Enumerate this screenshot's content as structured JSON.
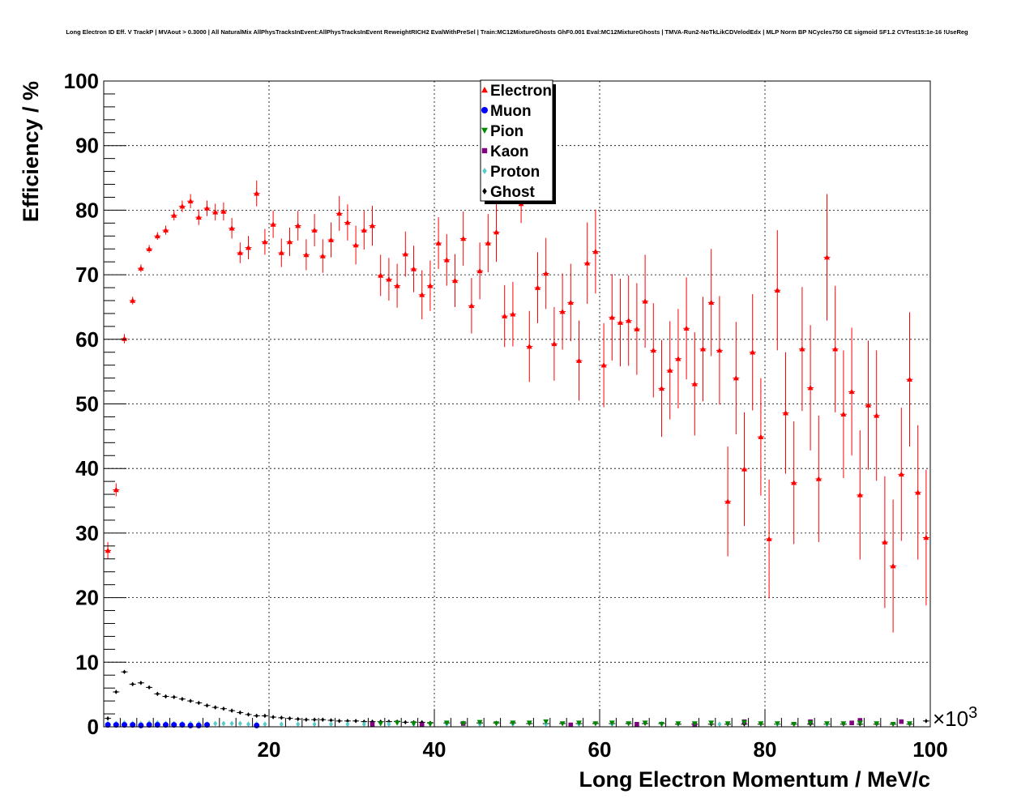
{
  "chart_data": {
    "type": "scatter",
    "title": "Long Electron ID Eff. V TrackP | MVAout > 0.3000 | All NaturalMix AllPhysTracksInEvent:AllPhysTracksInEvent ReweightRICH2 EvalWithPreSel | Train:MC12MixtureGhosts GhF0.001 Eval:MC12MixtureGhosts | TMVA-Run2-NoTkLikCDVelodEdx | MLP Norm BP NCycles750 CE sigmoid SF1.2 CVTest15:1e-16 !UseReg",
    "xlabel": "Long Electron Momentum / MeV/c",
    "ylabel": "Efficiency / %",
    "x_multiplier": "×10",
    "x_multiplier_exp": "3",
    "xlim": [
      0,
      100
    ],
    "ylim": [
      0,
      100
    ],
    "x_ticks": [
      20,
      40,
      60,
      80,
      100
    ],
    "y_ticks": [
      0,
      10,
      20,
      30,
      40,
      50,
      60,
      70,
      80,
      90,
      100
    ],
    "grid": true,
    "legend_position": "top-center",
    "series": [
      {
        "name": "Electron",
        "marker": "triangle-up",
        "color": "#ff0000",
        "x": [
          1,
          2,
          3,
          4,
          5,
          6,
          7,
          8,
          9,
          10,
          11,
          12,
          13,
          14,
          15,
          16,
          17,
          18,
          19,
          20,
          21,
          22,
          23,
          24,
          25,
          26,
          27,
          28,
          29,
          30,
          31,
          32,
          33,
          34,
          35,
          36,
          37,
          38,
          39,
          40,
          41,
          42,
          43,
          44,
          45,
          46,
          47,
          48,
          49,
          50,
          51,
          52,
          53,
          54,
          55,
          56,
          57,
          58,
          59,
          60,
          61,
          62,
          63,
          64,
          65,
          66,
          67,
          68,
          69,
          70,
          71,
          72,
          73,
          74,
          75,
          76,
          77,
          78,
          79,
          80,
          81,
          82,
          83,
          84,
          85,
          86,
          87,
          88,
          89,
          90,
          91,
          92,
          93,
          94,
          95,
          96,
          97,
          98,
          99,
          100
        ],
        "values": [
          27.3,
          36.7,
          60.1,
          66.0,
          71.0,
          74.0,
          76.0,
          76.9,
          79.2,
          80.6,
          81.4,
          78.9,
          80.3,
          79.7,
          79.8,
          77.2,
          73.4,
          74.2,
          82.6,
          75.1,
          77.8,
          73.4,
          75.1,
          77.6,
          73.1,
          76.9,
          72.9,
          75.4,
          79.5,
          78.1,
          74.6,
          76.9,
          77.6,
          69.9,
          69.3,
          68.3,
          73.2,
          70.9,
          66.9,
          68.3,
          74.9,
          72.3,
          69.1,
          75.6,
          65.2,
          70.6,
          74.9,
          76.6,
          63.6,
          63.9,
          81.0,
          58.9,
          68.0,
          70.2,
          59.3,
          64.3,
          65.7,
          56.7,
          71.8,
          73.6,
          56.0,
          63.4,
          62.6,
          62.9,
          61.6,
          65.9,
          58.3,
          52.4,
          55.2,
          57.0,
          61.7,
          53.1,
          58.5,
          65.7,
          58.3,
          34.9,
          54.0,
          39.9,
          58.0,
          44.9,
          29.1,
          67.6,
          48.6,
          37.8,
          58.5,
          52.5,
          38.4,
          72.7,
          58.5,
          48.4,
          51.9,
          35.9,
          49.8,
          48.2,
          28.6,
          24.9,
          39.1,
          53.8,
          36.3,
          29.3
        ],
        "errors": [
          1.3,
          1.0,
          0.7,
          0.6,
          0.6,
          0.6,
          0.6,
          0.7,
          0.8,
          0.9,
          1.1,
          1.2,
          1.2,
          1.3,
          1.4,
          1.6,
          1.6,
          1.8,
          2.0,
          2.0,
          2.1,
          2.2,
          2.2,
          2.3,
          2.4,
          2.5,
          2.6,
          2.7,
          2.7,
          2.8,
          3.0,
          3.0,
          3.1,
          3.2,
          3.3,
          3.4,
          3.5,
          3.6,
          3.8,
          3.9,
          4.0,
          4.0,
          4.1,
          4.2,
          4.3,
          4.4,
          4.5,
          4.6,
          4.8,
          5.0,
          3.0,
          5.5,
          5.5,
          5.5,
          5.7,
          5.9,
          6.0,
          6.2,
          6.3,
          6.5,
          6.5,
          6.7,
          6.8,
          7.0,
          7.1,
          7.2,
          7.3,
          7.5,
          7.6,
          7.7,
          7.9,
          8.0,
          8.1,
          8.3,
          8.4,
          8.5,
          8.7,
          8.8,
          9.0,
          9.1,
          9.2,
          9.3,
          9.4,
          9.5,
          9.6,
          9.7,
          9.8,
          9.8,
          9.8,
          9.9,
          9.9,
          10.0,
          10.0,
          10.1,
          10.2,
          10.3,
          10.3,
          10.4,
          10.4,
          10.5
        ]
      },
      {
        "name": "Muon",
        "marker": "circle",
        "color": "#0000ff",
        "x": [
          1,
          2,
          3,
          4,
          5,
          6,
          7,
          8,
          9,
          10,
          11,
          12,
          13,
          19
        ],
        "values": [
          0.3,
          0.3,
          0.3,
          0.3,
          0.2,
          0.3,
          0.3,
          0.3,
          0.3,
          0.3,
          0.2,
          0.2,
          0.3,
          0.2
        ]
      },
      {
        "name": "Pion",
        "marker": "triangle-down",
        "color": "#008800",
        "x": [
          34,
          36,
          38,
          40,
          42,
          44,
          46,
          48,
          50,
          52,
          54,
          56,
          58,
          60,
          62,
          64,
          66,
          68,
          70,
          72,
          74,
          76,
          78,
          80,
          82,
          84,
          86,
          88,
          90,
          92,
          94,
          96,
          98
        ],
        "values": [
          0.5,
          0.6,
          0.5,
          0.4,
          0.6,
          0.5,
          0.7,
          0.5,
          0.6,
          0.6,
          0.8,
          0.5,
          0.6,
          0.5,
          0.6,
          0.5,
          0.6,
          0.4,
          0.5,
          0.5,
          0.6,
          0.5,
          0.7,
          0.5,
          0.5,
          0.4,
          0.6,
          0.5,
          0.5,
          0.6,
          0.5,
          0.4,
          0.5
        ]
      },
      {
        "name": "Kaon",
        "marker": "square",
        "color": "#800080",
        "x": [
          33,
          39,
          44,
          57,
          65,
          72,
          78,
          86,
          91,
          92,
          97
        ],
        "values": [
          0.4,
          0.3,
          0.5,
          0.3,
          0.4,
          0.4,
          0.8,
          0.8,
          0.6,
          1.0,
          0.8
        ]
      },
      {
        "name": "Proton",
        "marker": "diamond",
        "color": "#55cccc",
        "x": [
          1,
          2,
          3,
          4,
          5,
          6,
          7,
          8,
          9,
          10,
          11,
          12,
          13,
          14,
          15,
          16,
          17,
          18,
          19,
          20,
          22,
          24,
          26,
          28,
          30,
          32,
          35,
          38,
          42,
          46,
          50,
          54,
          58,
          62,
          68,
          75,
          82,
          88
        ],
        "values": [
          0.5,
          0.5,
          0.6,
          0.5,
          0.5,
          0.6,
          0.6,
          0.5,
          0.5,
          0.5,
          0.5,
          0.5,
          0.4,
          0.5,
          0.5,
          0.5,
          0.5,
          0.4,
          0.4,
          0.4,
          0.4,
          0.4,
          0.4,
          0.4,
          0.4,
          0.4,
          0.4,
          0.4,
          0.4,
          0.4,
          0.4,
          0.4,
          0.4,
          0.4,
          0.5,
          0.4,
          0.4,
          0.4
        ]
      },
      {
        "name": "Ghost",
        "marker": "diamond",
        "color": "#000000",
        "x": [
          1,
          2,
          3,
          4,
          5,
          6,
          7,
          8,
          9,
          10,
          11,
          12,
          13,
          14,
          15,
          16,
          17,
          18,
          19,
          20,
          21,
          22,
          23,
          24,
          25,
          26,
          27,
          28,
          29,
          30,
          31,
          32,
          33,
          34,
          35,
          36,
          37,
          38,
          39,
          40,
          42,
          44,
          46,
          48,
          50,
          52,
          54,
          56,
          58,
          60,
          62,
          64,
          66,
          68,
          70,
          72,
          74,
          76,
          78,
          80,
          82,
          84,
          86,
          88,
          90,
          92,
          94,
          96,
          98,
          100
        ],
        "values": [
          1.3,
          5.4,
          8.5,
          6.6,
          6.8,
          6.1,
          5.1,
          4.7,
          4.6,
          4.3,
          4.0,
          3.7,
          3.3,
          3.0,
          2.8,
          2.5,
          2.2,
          1.9,
          1.7,
          1.7,
          1.5,
          1.4,
          1.3,
          1.2,
          1.1,
          1.1,
          1.1,
          1.0,
          0.9,
          0.9,
          0.9,
          0.8,
          0.8,
          0.8,
          0.8,
          0.8,
          0.7,
          0.7,
          0.7,
          0.6,
          0.6,
          0.6,
          0.6,
          0.6,
          0.6,
          0.5,
          0.5,
          0.5,
          0.5,
          0.5,
          0.5,
          0.5,
          0.5,
          0.5,
          0.4,
          0.4,
          0.4,
          0.4,
          0.4,
          0.4,
          0.4,
          0.4,
          0.4,
          0.4,
          0.4,
          0.4,
          0.4,
          0.4,
          0.4,
          0.9
        ]
      }
    ]
  }
}
